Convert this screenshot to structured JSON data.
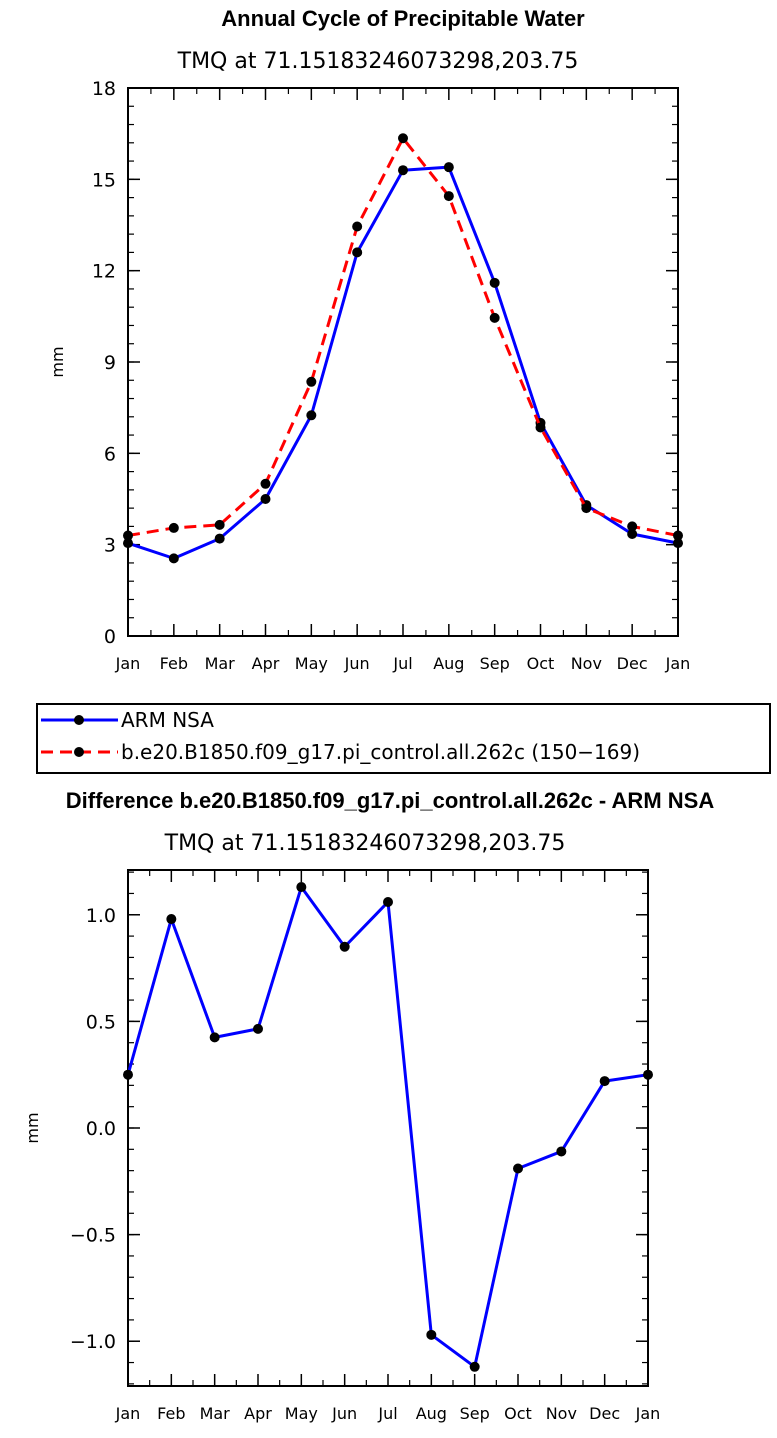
{
  "chart_data": [
    {
      "type": "line",
      "title": "Annual Cycle of Precipitable Water",
      "subtitle": "TMQ at 71.15183246073298,203.75",
      "xlabel": "",
      "ylabel": "mm",
      "categories": [
        "Jan",
        "Feb",
        "Mar",
        "Apr",
        "May",
        "Jun",
        "Jul",
        "Aug",
        "Sep",
        "Oct",
        "Nov",
        "Dec",
        "Jan"
      ],
      "ylim": [
        0,
        18
      ],
      "yticks": [
        "0",
        "3",
        "6",
        "9",
        "12",
        "15",
        "18"
      ],
      "ytick_values": [
        0,
        3,
        6,
        9,
        12,
        15,
        18
      ],
      "series": [
        {
          "name": "ARM NSA",
          "color": "#0000ff",
          "style": "solid",
          "values": [
            3.05,
            2.55,
            3.2,
            4.5,
            7.25,
            12.6,
            15.3,
            15.4,
            11.6,
            7.0,
            4.3,
            3.35,
            3.05
          ]
        },
        {
          "name": "b.e20.B1850.f09_g17.pi_control.all.262c (150−169)",
          "color": "#ff0000",
          "style": "dashed",
          "values": [
            3.3,
            3.55,
            3.65,
            5.0,
            8.35,
            13.45,
            16.35,
            14.45,
            10.45,
            6.85,
            4.2,
            3.6,
            3.3
          ]
        }
      ],
      "legend_position": "below"
    },
    {
      "type": "line",
      "title": "Difference b.e20.B1850.f09_g17.pi_control.all.262c - ARM NSA",
      "subtitle": "TMQ at 71.15183246073298,203.75",
      "xlabel": "",
      "ylabel": "mm",
      "categories": [
        "Jan",
        "Feb",
        "Mar",
        "Apr",
        "May",
        "Jun",
        "Jul",
        "Aug",
        "Sep",
        "Oct",
        "Nov",
        "Dec",
        "Jan"
      ],
      "ylim": [
        -1.21,
        1.21
      ],
      "yticks": [
        "−1.0",
        "−0.5",
        "0.0",
        "0.5",
        "1.0"
      ],
      "ytick_values": [
        -1.0,
        -0.5,
        0.0,
        0.5,
        1.0
      ],
      "series": [
        {
          "name": "Difference",
          "color": "#0000ff",
          "style": "solid",
          "values": [
            0.25,
            0.98,
            0.425,
            0.465,
            1.13,
            0.85,
            1.06,
            -0.97,
            -1.12,
            -0.19,
            -0.11,
            0.22,
            0.25
          ]
        }
      ]
    }
  ]
}
